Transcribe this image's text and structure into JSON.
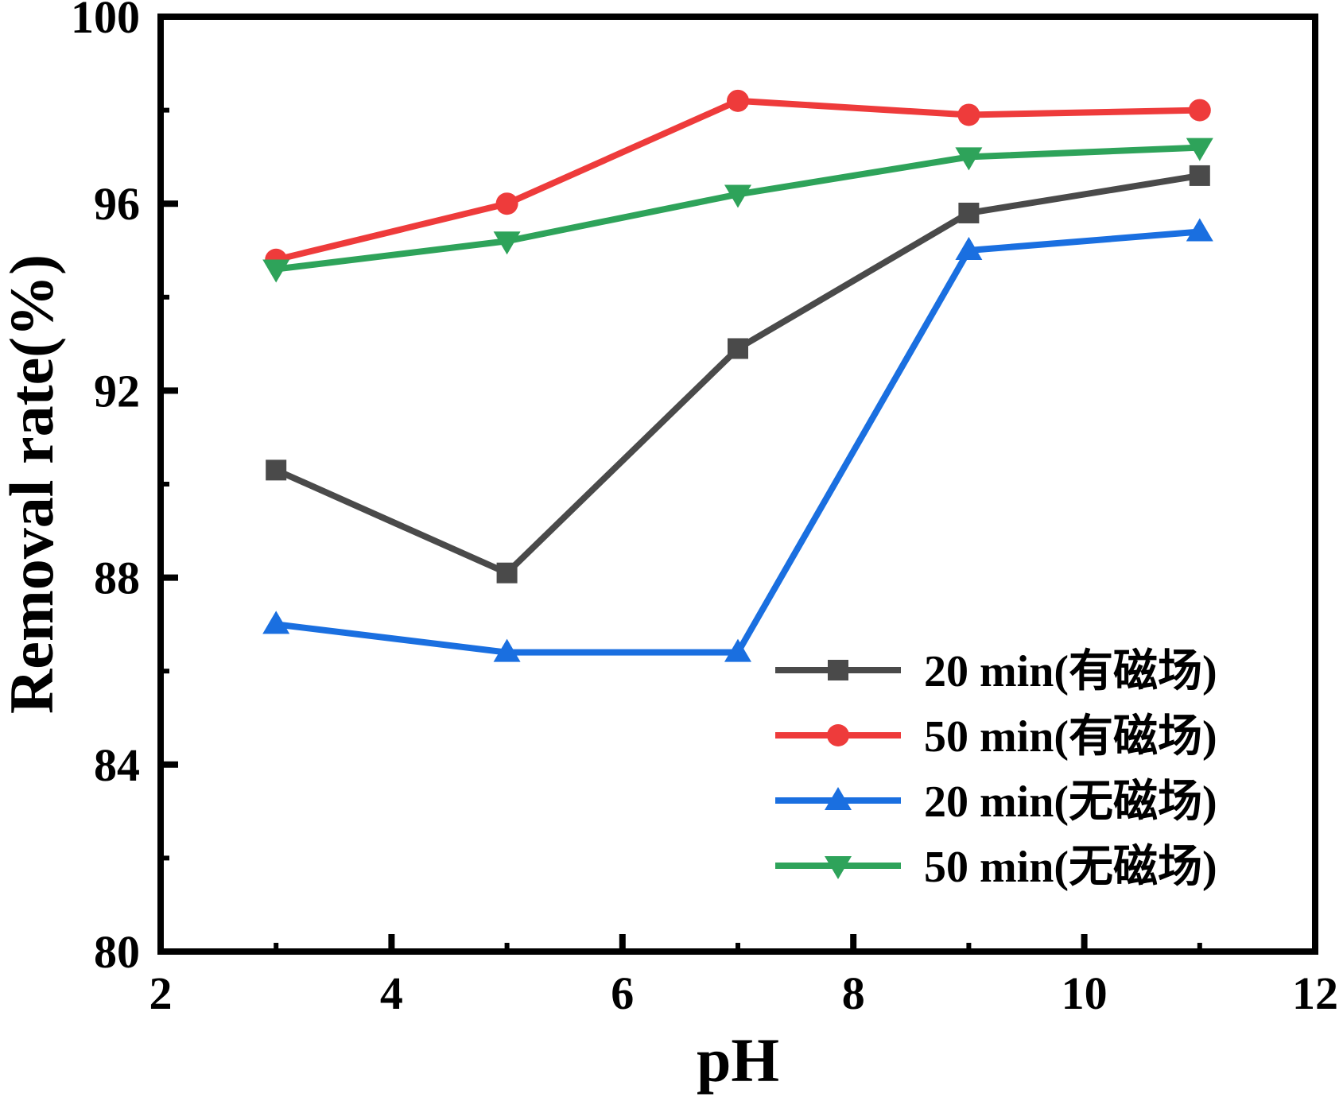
{
  "chart_data": {
    "type": "line",
    "title": "",
    "xlabel": "pH",
    "ylabel": "Removal rate(%)",
    "xlim": [
      2,
      12
    ],
    "ylim": [
      80,
      100
    ],
    "x_ticks": [
      2,
      4,
      6,
      8,
      10,
      12
    ],
    "y_ticks": [
      80,
      84,
      88,
      92,
      96,
      100
    ],
    "x_tick_labels": [
      "2",
      "4",
      "6",
      "8",
      "10",
      "12"
    ],
    "y_tick_labels": [
      "80",
      "84",
      "88",
      "92",
      "96",
      "100"
    ],
    "x": [
      3,
      5,
      7,
      9,
      11
    ],
    "grid": false,
    "legend_position": "bottom-right",
    "series": [
      {
        "name": "20 min(有磁场)",
        "values": [
          90.3,
          88.1,
          92.9,
          95.8,
          96.6
        ],
        "color": "#4a4a4a",
        "marker": "square"
      },
      {
        "name": "50 min(有磁场)",
        "values": [
          94.8,
          96.0,
          98.2,
          97.9,
          98.0
        ],
        "color": "#ee3b3b",
        "marker": "circle"
      },
      {
        "name": "20 min(无磁场)",
        "values": [
          87.0,
          86.4,
          86.4,
          95.0,
          95.4
        ],
        "color": "#1a6fe0",
        "marker": "triangle-up"
      },
      {
        "name": "50 min(无磁场)",
        "values": [
          94.6,
          95.2,
          96.2,
          97.0,
          97.2
        ],
        "color": "#2ea35a",
        "marker": "triangle-down"
      }
    ]
  }
}
